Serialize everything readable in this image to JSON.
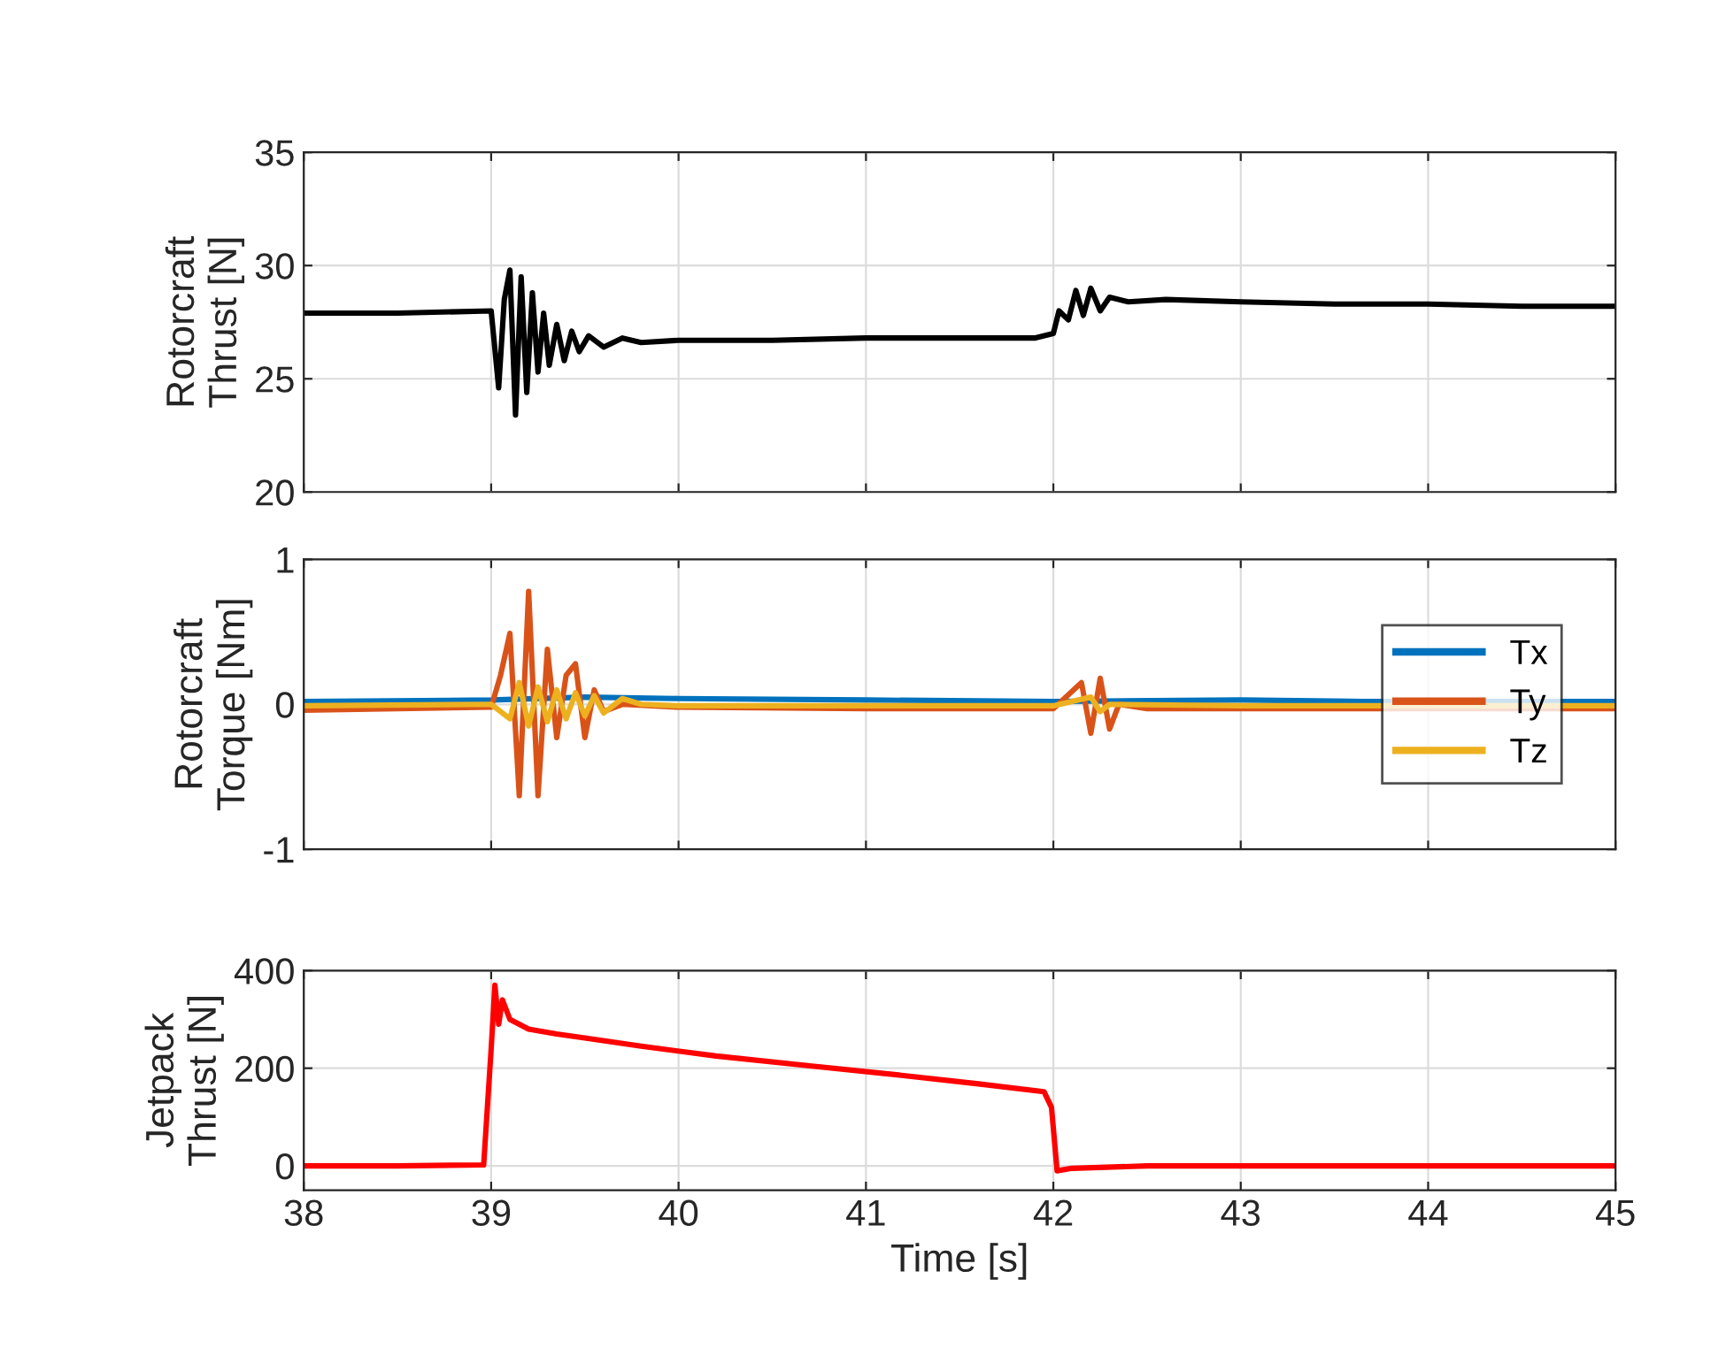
{
  "chart_data": [
    {
      "type": "line",
      "ylabel": "Rotorcraft\nThrust [N]",
      "xlim": [
        38,
        45
      ],
      "xticks": [
        38,
        39,
        40,
        41,
        42,
        43,
        44,
        45
      ],
      "ylim": [
        20,
        35
      ],
      "yticks": [
        20,
        25,
        30,
        35
      ],
      "grid": true,
      "tick_labels": "y",
      "series": [
        {
          "color": "#000000",
          "x": [
            38,
            38.5,
            39,
            39.04,
            39.07,
            39.1,
            39.13,
            39.16,
            39.19,
            39.22,
            39.25,
            39.28,
            39.31,
            39.35,
            39.39,
            39.43,
            39.47,
            39.52,
            39.6,
            39.7,
            39.8,
            40,
            40.5,
            41,
            41.5,
            41.9,
            42,
            42.03,
            42.08,
            42.12,
            42.16,
            42.2,
            42.25,
            42.3,
            42.4,
            42.6,
            43,
            43.5,
            44,
            44.5,
            45
          ],
          "values": [
            27.9,
            27.9,
            28.0,
            24.6,
            28.5,
            29.8,
            23.4,
            29.5,
            24.4,
            28.8,
            25.3,
            27.9,
            25.6,
            27.4,
            25.8,
            27.1,
            26.2,
            26.9,
            26.4,
            26.8,
            26.6,
            26.7,
            26.7,
            26.8,
            26.8,
            26.8,
            27.0,
            28.0,
            27.6,
            28.9,
            27.8,
            29.0,
            28.0,
            28.6,
            28.4,
            28.5,
            28.4,
            28.3,
            28.3,
            28.2,
            28.2
          ]
        }
      ]
    },
    {
      "type": "line",
      "ylabel": "Rotorcraft\nTorque [Nm]",
      "xlim": [
        38,
        45
      ],
      "xticks": [
        38,
        39,
        40,
        41,
        42,
        43,
        44,
        45
      ],
      "ylim": [
        -1,
        1
      ],
      "yticks": [
        -1,
        0,
        1
      ],
      "grid": true,
      "tick_labels": "y",
      "legend": "right",
      "series": [
        {
          "name": "Tx",
          "color": "#0072bd",
          "x": [
            38,
            39,
            39.5,
            40,
            41,
            42,
            43,
            43.65,
            44.8,
            45
          ],
          "values": [
            0.02,
            0.03,
            0.05,
            0.04,
            0.03,
            0.02,
            0.03,
            0.02,
            0.02,
            0.02
          ]
        },
        {
          "name": "Ty",
          "color": "#d95319",
          "x": [
            38,
            39,
            39.05,
            39.1,
            39.15,
            39.2,
            39.25,
            39.3,
            39.35,
            39.4,
            39.45,
            39.5,
            39.55,
            39.6,
            39.7,
            40,
            41,
            42,
            42.15,
            42.2,
            42.25,
            42.3,
            42.35,
            42.5,
            43,
            43.65,
            44.8,
            45
          ],
          "values": [
            -0.04,
            -0.02,
            0.2,
            0.49,
            -0.63,
            0.78,
            -0.63,
            0.38,
            -0.23,
            0.2,
            0.28,
            -0.23,
            0.1,
            -0.05,
            0.0,
            -0.02,
            -0.03,
            -0.03,
            0.15,
            -0.2,
            0.18,
            -0.17,
            0.0,
            -0.03,
            -0.03,
            -0.03,
            -0.03,
            -0.03
          ]
        },
        {
          "name": "Tz",
          "color": "#edb120",
          "x": [
            38,
            39,
            39.1,
            39.15,
            39.2,
            39.25,
            39.3,
            39.35,
            39.4,
            39.45,
            39.5,
            39.55,
            39.6,
            39.7,
            39.8,
            40,
            41,
            42,
            42.2,
            42.25,
            42.3,
            43,
            43.65,
            44.8,
            45
          ],
          "values": [
            -0.01,
            0.0,
            -0.1,
            0.15,
            -0.15,
            0.12,
            -0.12,
            0.1,
            -0.1,
            0.08,
            -0.08,
            0.06,
            -0.06,
            0.04,
            0.0,
            -0.01,
            -0.01,
            -0.01,
            0.05,
            -0.05,
            0.0,
            -0.01,
            -0.01,
            -0.01,
            -0.01
          ]
        }
      ]
    },
    {
      "type": "line",
      "ylabel": "Jetpack\nThrust [N]",
      "xlabel": "Time [s]",
      "xlim": [
        38,
        45
      ],
      "xticks": [
        38,
        39,
        40,
        41,
        42,
        43,
        44,
        45
      ],
      "ylim": [
        -50,
        400
      ],
      "yticks": [
        0,
        200,
        400
      ],
      "grid": true,
      "series": [
        {
          "color": "#ff0000",
          "x": [
            38,
            38.5,
            38.96,
            39.0,
            39.02,
            39.04,
            39.06,
            39.1,
            39.2,
            39.35,
            39.5,
            39.8,
            40.2,
            40.7,
            41.2,
            41.6,
            41.95,
            41.99,
            42.02,
            42.1,
            42.5,
            43,
            44,
            45
          ],
          "values": [
            0,
            0,
            2,
            240,
            370,
            290,
            340,
            300,
            280,
            270,
            262,
            245,
            225,
            205,
            185,
            168,
            152,
            120,
            -10,
            -5,
            0,
            0,
            0,
            0
          ]
        }
      ]
    }
  ]
}
